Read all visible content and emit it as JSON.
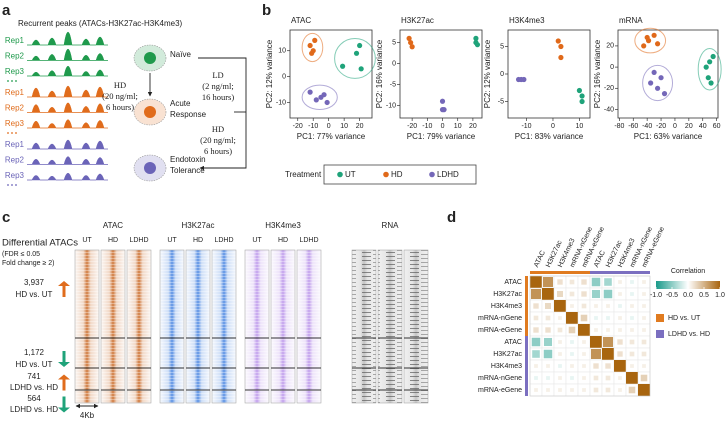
{
  "panel_labels": [
    "a",
    "b",
    "c",
    "d"
  ],
  "a": {
    "title": "Recurrent peaks (ATACs-H3K27ac-H3K4me3)",
    "conditions": [
      {
        "color": "#1f9a4c",
        "reps": [
          "Rep1",
          "Rep2",
          "Rep3"
        ],
        "state": [
          "Naïve"
        ]
      },
      {
        "color": "#e06c1c",
        "reps": [
          "Rep1",
          "Rep2",
          "Rep3"
        ],
        "state": [
          "Acute",
          "Response"
        ]
      },
      {
        "color": "#6b64b8",
        "reps": [
          "Rep1",
          "Rep2",
          "Rep3"
        ],
        "state": [
          "Endotoxin",
          "Tolerance"
        ]
      }
    ],
    "treatments": [
      [
        "HD",
        "(20 ng/ml;",
        "6 hours)"
      ],
      [
        "LD",
        "(2 ng/ml;",
        "16 hours)"
      ],
      [
        "HD",
        "(20 ng/ml;",
        "6 hours)"
      ]
    ]
  },
  "b": {
    "legend_title": "Treatment"
  },
  "chart_data": [
    {
      "type": "scatter",
      "title": "ATAC",
      "xlabel": "PC1: 77% variance",
      "ylabel": "PC2: 12% variance",
      "xlim": [
        -25,
        28
      ],
      "ylim": [
        -16,
        18
      ],
      "xticks": [
        -20,
        -10,
        0,
        10,
        20
      ],
      "yticks": [
        -10,
        0,
        10
      ],
      "ellipses": true,
      "series": [
        {
          "name": "UT",
          "color": "#1fa37a",
          "x": [
            9,
            18,
            20,
            21
          ],
          "values": [
            4,
            9,
            12,
            3
          ]
        },
        {
          "name": "HD",
          "color": "#e0691a",
          "x": [
            -12,
            -10,
            -9,
            -11
          ],
          "values": [
            12,
            10,
            14,
            9
          ]
        },
        {
          "name": "LDHD",
          "color": "#7467b8",
          "x": [
            -12,
            -8,
            -5,
            -3,
            -1
          ],
          "values": [
            -6,
            -9,
            -8,
            -7,
            -10
          ]
        }
      ]
    },
    {
      "type": "scatter",
      "title": "H3K27ac",
      "xlabel": "PC1: 79% variance",
      "ylabel": "PC2: 16% variance",
      "xlim": [
        -28,
        26
      ],
      "ylim": [
        -13,
        8
      ],
      "xticks": [
        -20,
        -10,
        0,
        10,
        20
      ],
      "yticks": [
        -10,
        -5,
        0,
        5
      ],
      "ellipses": false,
      "series": [
        {
          "name": "UT",
          "color": "#1fa37a",
          "x": [
            22,
            22,
            23
          ],
          "values": [
            6,
            5,
            4.5
          ]
        },
        {
          "name": "HD",
          "color": "#e0691a",
          "x": [
            -22,
            -21,
            -20
          ],
          "values": [
            6,
            5,
            4
          ]
        },
        {
          "name": "LDHD",
          "color": "#7467b8",
          "x": [
            0,
            0,
            1
          ],
          "values": [
            -9,
            -11,
            -11
          ]
        }
      ]
    },
    {
      "type": "scatter",
      "title": "H3K4me3",
      "xlabel": "PC1: 83% variance",
      "ylabel": "PC2: 12% variance",
      "xlim": [
        -17,
        14
      ],
      "ylim": [
        -8,
        8
      ],
      "xticks": [
        -10,
        0,
        10
      ],
      "yticks": [
        -5,
        0,
        5
      ],
      "ellipses": false,
      "series": [
        {
          "name": "UT",
          "color": "#1fa37a",
          "x": [
            10,
            11,
            11
          ],
          "values": [
            -3,
            -4,
            -5
          ]
        },
        {
          "name": "HD",
          "color": "#e0691a",
          "x": [
            2,
            3,
            3
          ],
          "values": [
            6,
            5,
            3
          ]
        },
        {
          "name": "LDHD",
          "color": "#7467b8",
          "x": [
            -13,
            -12,
            -11
          ],
          "values": [
            -1,
            -1,
            -1
          ]
        }
      ]
    },
    {
      "type": "scatter",
      "title": "mRNA",
      "xlabel": "PC1: 63% variance",
      "ylabel": "PC2: 16% variance",
      "xlim": [
        -82,
        62
      ],
      "ylim": [
        -48,
        35
      ],
      "xticks": [
        -80,
        -60,
        -40,
        -20,
        0,
        20,
        40,
        60
      ],
      "yticks": [
        -40,
        -20,
        0,
        20
      ],
      "ellipses": true,
      "series": [
        {
          "name": "UT",
          "color": "#1fa37a",
          "x": [
            45,
            50,
            48,
            52,
            55
          ],
          "values": [
            0,
            5,
            -10,
            -15,
            10
          ]
        },
        {
          "name": "HD",
          "color": "#e0691a",
          "x": [
            -40,
            -30,
            -25,
            -45,
            -38
          ],
          "values": [
            28,
            30,
            22,
            20,
            25
          ]
        },
        {
          "name": "LDHD",
          "color": "#7467b8",
          "x": [
            -30,
            -20,
            -25,
            -15,
            -35
          ],
          "values": [
            -5,
            -10,
            -20,
            -25,
            -15
          ]
        }
      ]
    },
    {
      "type": "heatmap",
      "groups": [
        {
          "name": "HD vs. UT",
          "color": "#e07b20",
          "labels": [
            "ATAC",
            "H3K27ac",
            "H3K4me3",
            "mRNA-nGene",
            "mRNA-eGene"
          ]
        },
        {
          "name": "LDHD vs. HD",
          "color": "#7b6fc0",
          "labels": [
            "ATAC",
            "H3K27ac",
            "H3K4me3",
            "mRNA-nGene",
            "mRNA-eGene"
          ]
        }
      ],
      "values": [
        [
          1,
          0.7,
          0.2,
          0.15,
          0.2,
          -0.5,
          -0.4,
          0.1,
          -0.1,
          0.1
        ],
        [
          0.7,
          1,
          0.25,
          0.15,
          0.2,
          -0.45,
          -0.5,
          0.1,
          -0.1,
          0.1
        ],
        [
          0.2,
          0.25,
          1,
          0.1,
          0.15,
          0.1,
          0.1,
          -0.1,
          0.1,
          0.1
        ],
        [
          0.15,
          0.15,
          0.1,
          1,
          0.3,
          -0.1,
          -0.1,
          0.1,
          -0.1,
          0.1
        ],
        [
          0.2,
          0.2,
          0.15,
          0.3,
          1,
          0.1,
          0.1,
          0.1,
          0.1,
          0.1
        ],
        [
          -0.5,
          -0.45,
          0.1,
          -0.1,
          0.1,
          1,
          0.7,
          0.2,
          0.15,
          0.15
        ],
        [
          -0.4,
          -0.5,
          0.1,
          -0.1,
          0.1,
          0.7,
          1,
          0.2,
          0.15,
          0.15
        ],
        [
          0.1,
          0.1,
          -0.1,
          0.1,
          0.1,
          0.2,
          0.2,
          1,
          0.1,
          0.1
        ],
        [
          -0.1,
          -0.1,
          0.1,
          -0.1,
          0.1,
          0.15,
          0.15,
          0.1,
          1,
          0.3
        ],
        [
          0.1,
          0.1,
          0.1,
          0.1,
          0.1,
          0.15,
          0.15,
          0.1,
          0.3,
          1
        ]
      ],
      "colorbar": {
        "title": "Correlation",
        "lim": [
          -1,
          1
        ],
        "colors": [
          "#1a9a8a",
          "#ffffff",
          "#a8650f"
        ],
        "ticks": [
          {
            "value": -1,
            "label": "-1.0"
          },
          {
            "value": -0.5,
            "label": "-0.5"
          },
          {
            "value": 0,
            "label": "0.0"
          },
          {
            "value": 0.5,
            "label": "0.5"
          },
          {
            "value": 1,
            "label": "1.0"
          }
        ]
      }
    }
  ],
  "c": {
    "title": [
      "Differential ATACs",
      "(FDR ≤ 0.05",
      "Fold change ≥ 2)"
    ],
    "assays": [
      {
        "name": "ATAC",
        "samples": [
          "UT",
          "HD",
          "LDHD"
        ],
        "color": "#c8641e"
      },
      {
        "name": "H3K27ac",
        "samples": [
          "UT",
          "HD",
          "LDHD"
        ],
        "color": "#3f7fe0"
      },
      {
        "name": "H3K4me3",
        "samples": [
          "UT",
          "HD",
          "LDHD"
        ],
        "color": "#b890ea"
      },
      {
        "name": "RNA",
        "color": "#555555"
      }
    ],
    "clusters": [
      {
        "count": "3,937",
        "label": "HD vs. UT",
        "direction": "up"
      },
      {
        "count": "1,172",
        "label": "HD vs. UT",
        "direction": "down"
      },
      {
        "count": "741",
        "label": "LDHD vs. HD",
        "direction": "up"
      },
      {
        "count": "564",
        "label": "LDHD vs. HD",
        "direction": "down"
      }
    ],
    "scale": "4Kb"
  }
}
